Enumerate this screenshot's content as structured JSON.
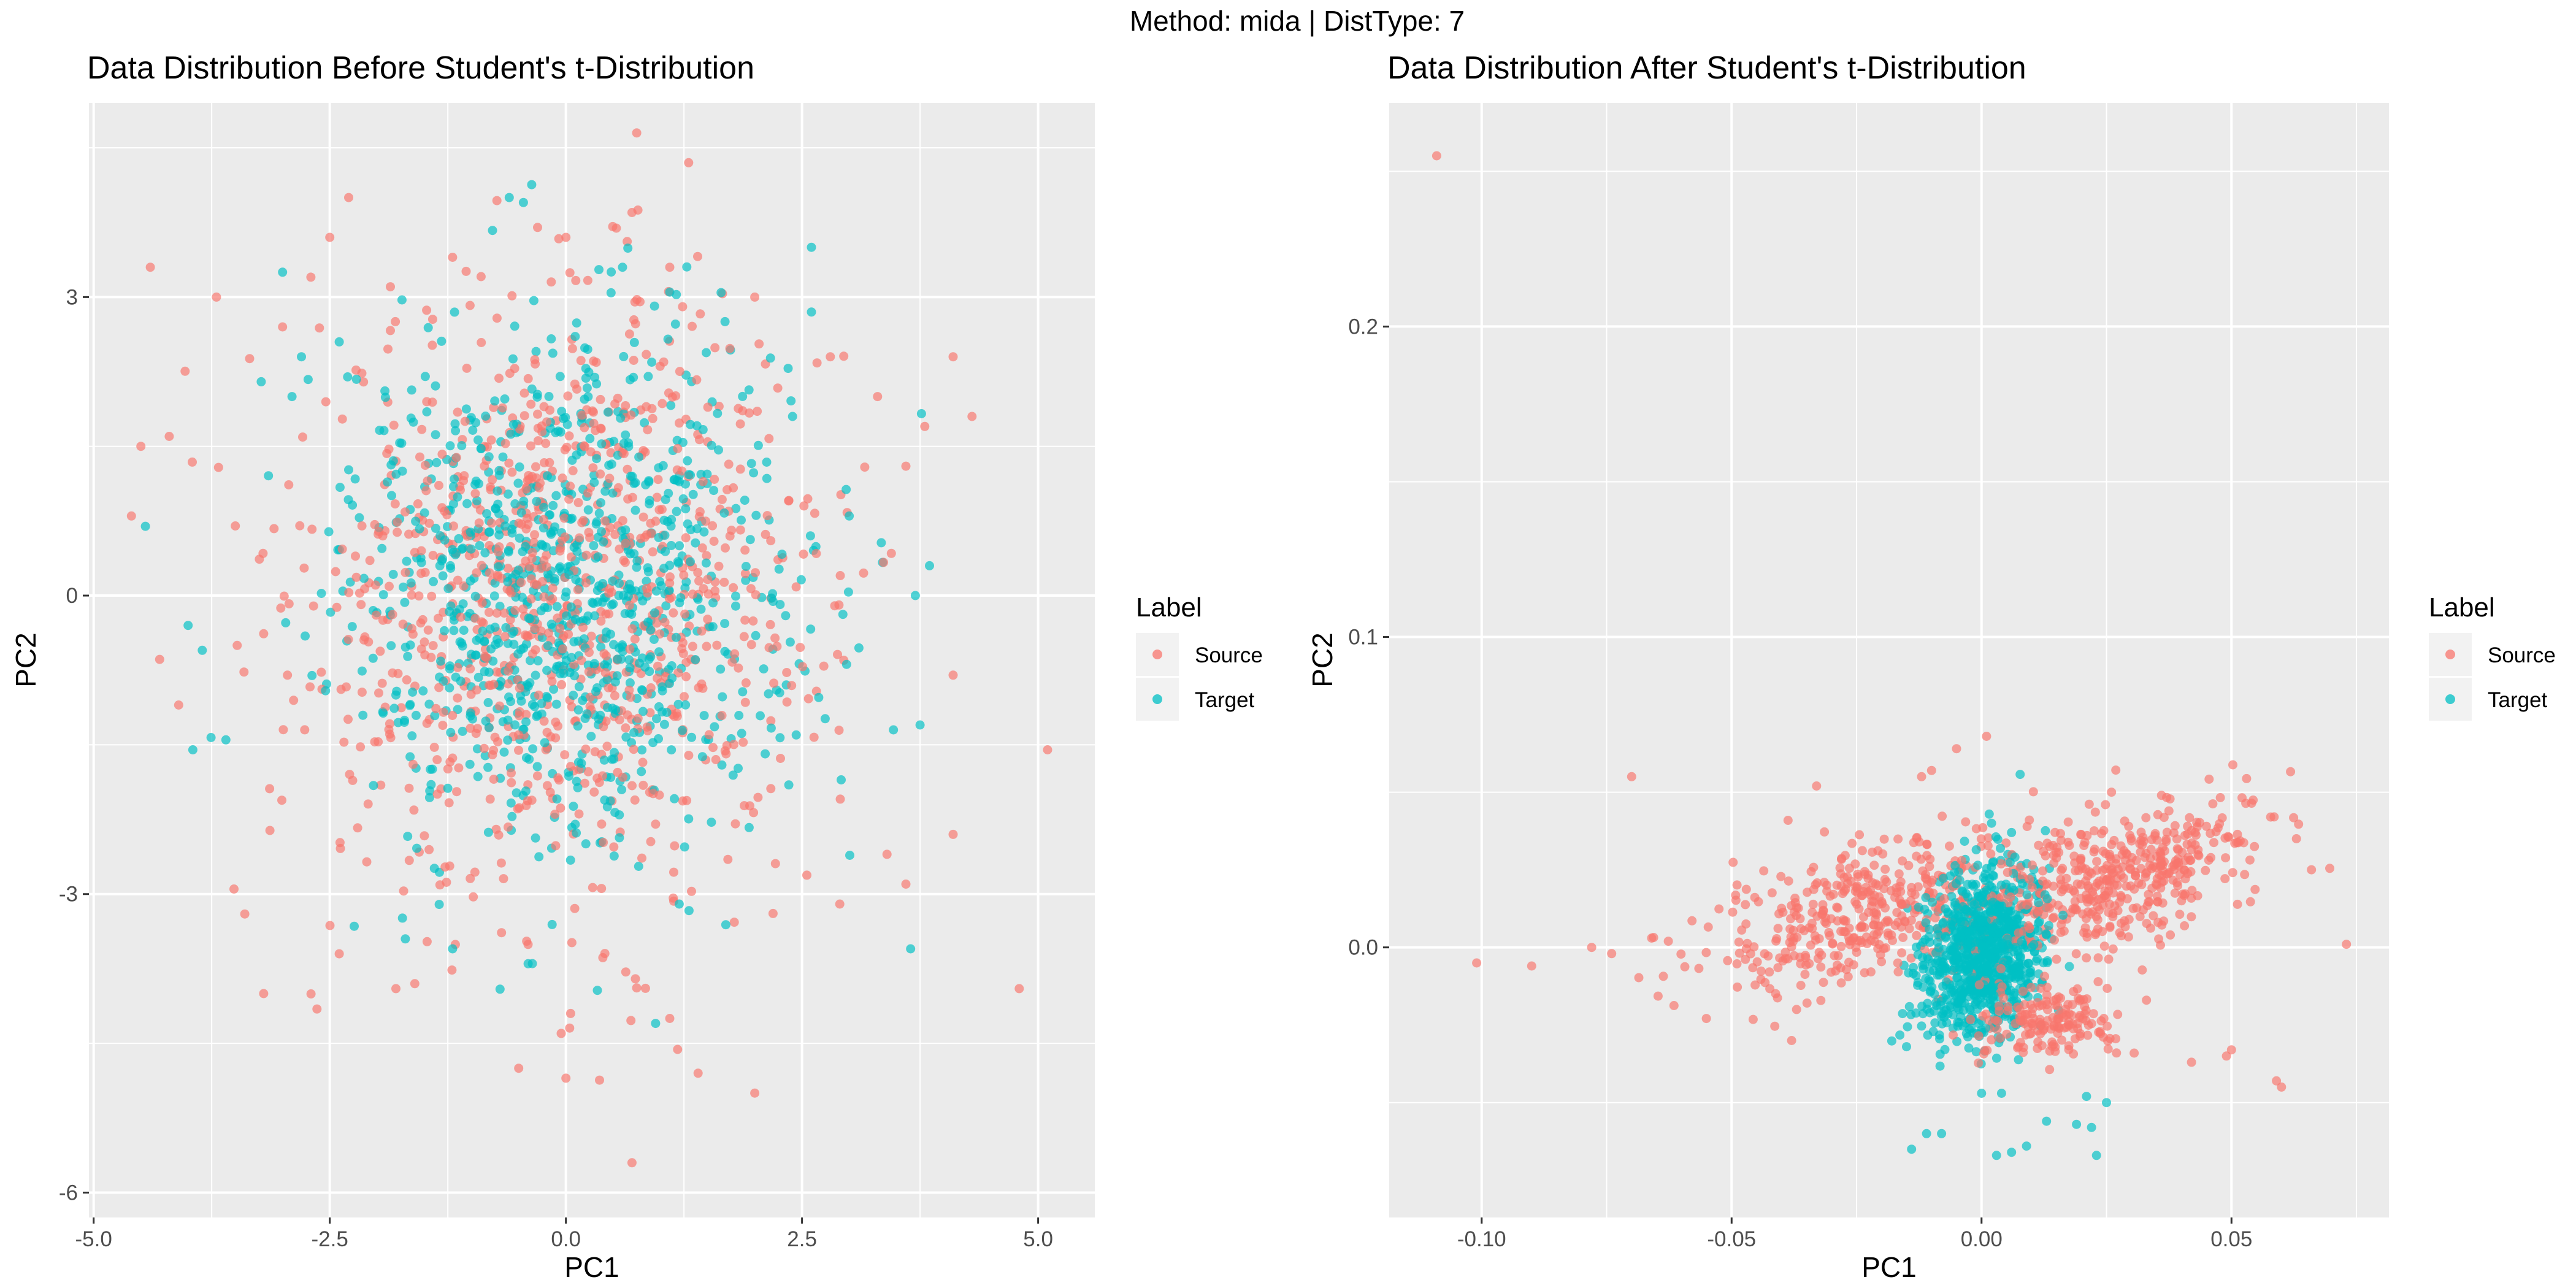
{
  "figure": {
    "supertitle": "Method: mida | DistType: 7"
  },
  "colors": {
    "Source": "#F8766D",
    "Target": "#00BFC4",
    "panel_background": "#EBEBEB",
    "grid": "#FFFFFF"
  },
  "chart_data": [
    {
      "type": "scatter",
      "title": "Data Distribution Before Student's t-Distribution",
      "xlabel": "PC1",
      "ylabel": "PC2",
      "xlim": [
        -5.05,
        5.6
      ],
      "ylim": [
        -6.25,
        4.95
      ],
      "x_ticks": [
        -5.0,
        -2.5,
        0.0,
        2.5,
        5.0
      ],
      "x_tick_labels": [
        "-5.0",
        "-2.5",
        "0.0",
        "2.5",
        "5.0"
      ],
      "y_ticks": [
        -6,
        -3,
        0,
        3
      ],
      "y_tick_labels": [
        "-6",
        "-3",
        "0",
        "3"
      ],
      "grid": true,
      "legend": {
        "title": "Label",
        "position": "right",
        "entries": [
          "Source",
          "Target"
        ]
      },
      "series": [
        {
          "name": "Source",
          "distribution": "bivariate normal cloud, approx. 1000 points",
          "center": [
            0.0,
            0.0
          ],
          "spread": [
            1.35,
            1.45
          ],
          "points": [
            [
              -4.4,
              3.3
            ],
            [
              -4.6,
              0.8
            ],
            [
              -4.2,
              1.6
            ],
            [
              -4.5,
              1.5
            ],
            [
              -4.1,
              -1.1
            ],
            [
              -3.7,
              3.0
            ],
            [
              -3.4,
              -3.2
            ],
            [
              -3.2,
              -4.0
            ],
            [
              -2.3,
              4.0
            ],
            [
              -2.5,
              3.6
            ],
            [
              0.75,
              4.65
            ],
            [
              1.3,
              4.35
            ],
            [
              0.7,
              3.85
            ],
            [
              -0.3,
              3.7
            ],
            [
              0.0,
              3.6
            ],
            [
              4.3,
              1.8
            ],
            [
              4.1,
              2.4
            ],
            [
              4.1,
              -0.8
            ],
            [
              4.1,
              -2.4
            ],
            [
              5.1,
              -1.55
            ],
            [
              4.8,
              -3.95
            ],
            [
              3.6,
              -2.9
            ],
            [
              2.0,
              -5.0
            ],
            [
              0.7,
              -5.7
            ],
            [
              0.0,
              -4.85
            ],
            [
              -0.05,
              -4.4
            ],
            [
              0.05,
              -4.2
            ],
            [
              -0.5,
              -4.75
            ],
            [
              -1.8,
              -3.95
            ],
            [
              -1.6,
              -3.9
            ],
            [
              -2.4,
              -3.6
            ],
            [
              1.4,
              -4.8
            ],
            [
              1.1,
              -4.25
            ],
            [
              2.9,
              -3.1
            ],
            [
              3.4,
              -2.6
            ],
            [
              3.8,
              1.7
            ],
            [
              3.6,
              1.3
            ],
            [
              2.8,
              2.4
            ],
            [
              3.3,
              2.0
            ],
            [
              -3.5,
              0.7
            ],
            [
              -3.0,
              2.7
            ],
            [
              -2.7,
              3.2
            ],
            [
              -1.2,
              3.4
            ],
            [
              1.1,
              3.3
            ],
            [
              2.0,
              3.0
            ]
          ]
        },
        {
          "name": "Target",
          "distribution": "bivariate normal cloud, approx. 1000 points",
          "center": [
            0.0,
            0.05
          ],
          "spread": [
            1.2,
            1.25
          ],
          "points": [
            [
              -3.0,
              3.25
            ],
            [
              -2.8,
              2.4
            ],
            [
              -2.9,
              2.0
            ],
            [
              -3.95,
              -1.55
            ],
            [
              -3.85,
              -0.55
            ],
            [
              -3.6,
              -1.45
            ],
            [
              -4.0,
              -0.3
            ],
            [
              -1.7,
              -3.45
            ],
            [
              -1.2,
              -3.55
            ],
            [
              -0.4,
              -3.7
            ],
            [
              0.95,
              -4.3
            ],
            [
              1.2,
              -3.1
            ],
            [
              2.6,
              3.5
            ],
            [
              2.6,
              2.85
            ],
            [
              -0.45,
              3.95
            ],
            [
              -0.6,
              4.0
            ],
            [
              3.65,
              -3.55
            ],
            [
              3.75,
              -1.3
            ],
            [
              3.85,
              0.3
            ],
            [
              3.7,
              0.0
            ],
            [
              -2.4,
              2.55
            ],
            [
              1.1,
              3.05
            ],
            [
              0.6,
              3.3
            ],
            [
              2.4,
              1.8
            ],
            [
              3.0,
              0.8
            ]
          ]
        }
      ]
    },
    {
      "type": "scatter",
      "title": "Data Distribution After Student's t-Distribution",
      "xlabel": "PC1",
      "ylabel": "PC2",
      "xlim": [
        -0.1185,
        0.0815
      ],
      "ylim": [
        -0.087,
        0.272
      ],
      "x_ticks": [
        -0.1,
        -0.05,
        0.0,
        0.05
      ],
      "x_tick_labels": [
        "-0.10",
        "-0.05",
        "0.00",
        "0.05"
      ],
      "y_ticks": [
        0.0,
        0.1,
        0.2
      ],
      "y_tick_labels": [
        "0.0",
        "0.1",
        "0.2"
      ],
      "grid": true,
      "legend": {
        "title": "Label",
        "position": "right",
        "entries": [
          "Source",
          "Target"
        ]
      },
      "series": [
        {
          "name": "Source",
          "distribution": "clusters: left arm and right arm of an X-shaped pattern plus a lower-right lobe, approx. 1000 points",
          "clusters": [
            {
              "center": [
                -0.022,
                0.012
              ],
              "spread": [
                0.016,
                0.011
              ],
              "direction": "left arm, sloping downward to the left"
            },
            {
              "center": [
                0.028,
                0.022
              ],
              "spread": [
                0.013,
                0.011
              ],
              "direction": "right arm, sloping upward to the right"
            },
            {
              "center": [
                0.013,
                -0.024
              ],
              "spread": [
                0.007,
                0.006
              ],
              "direction": "lower-right lobe"
            }
          ],
          "points": [
            [
              -0.109,
              0.255
            ],
            [
              -0.101,
              -0.005
            ],
            [
              -0.09,
              -0.006
            ],
            [
              -0.078,
              0.0
            ],
            [
              -0.07,
              0.055
            ],
            [
              -0.074,
              -0.002
            ],
            [
              -0.066,
              0.003
            ],
            [
              0.073,
              0.001
            ],
            [
              0.066,
              0.025
            ],
            [
              0.063,
              0.035
            ],
            [
              0.059,
              -0.043
            ],
            [
              0.06,
              -0.045
            ],
            [
              0.05,
              -0.033
            ],
            [
              0.049,
              -0.035
            ],
            [
              0.042,
              -0.037
            ],
            [
              0.04,
              0.015
            ],
            [
              0.001,
              0.068
            ],
            [
              -0.005,
              0.064
            ],
            [
              -0.01,
              0.057
            ],
            [
              -0.012,
              0.055
            ],
            [
              -0.033,
              0.052
            ],
            [
              -0.037,
              -0.02
            ],
            [
              -0.038,
              -0.03
            ],
            [
              0.026,
              0.05
            ],
            [
              0.036,
              0.049
            ],
            [
              0.045,
              0.039
            ],
            [
              0.033,
              -0.017
            ],
            [
              0.027,
              -0.034
            ]
          ]
        },
        {
          "name": "Target",
          "distribution": "dense cluster near the origin with a tail extending downward, approx. 1000 points",
          "clusters": [
            {
              "center": [
                0.0,
                -0.002
              ],
              "spread": [
                0.006,
                0.013
              ],
              "direction": "tilted upward to the right"
            }
          ],
          "points": [
            [
              0.006,
              -0.066
            ],
            [
              0.003,
              -0.067
            ],
            [
              0.009,
              -0.064
            ],
            [
              0.023,
              -0.067
            ],
            [
              0.022,
              -0.058
            ],
            [
              0.019,
              -0.057
            ],
            [
              0.013,
              -0.056
            ],
            [
              -0.008,
              -0.06
            ],
            [
              -0.014,
              -0.065
            ],
            [
              -0.011,
              -0.06
            ],
            [
              0.021,
              -0.048
            ],
            [
              0.025,
              -0.05
            ],
            [
              0.0,
              -0.047
            ],
            [
              0.004,
              -0.047
            ],
            [
              0.002,
              0.04
            ],
            [
              0.006,
              0.037
            ],
            [
              -0.015,
              -0.032
            ]
          ]
        }
      ]
    }
  ]
}
